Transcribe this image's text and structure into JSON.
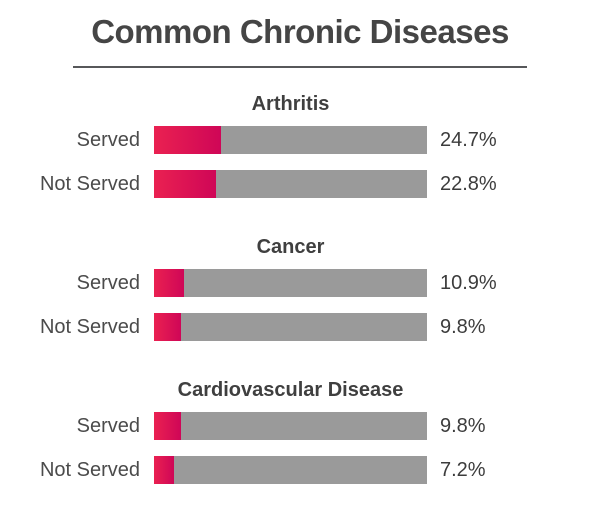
{
  "title": "Common Chronic Diseases",
  "chart_data": {
    "type": "bar",
    "orientation": "horizontal",
    "title": "Common Chronic Diseases",
    "value_unit": "percent",
    "xlim": [
      0,
      100
    ],
    "grid": false,
    "legend": "none",
    "categories": [
      "Served",
      "Not Served"
    ],
    "groups": [
      {
        "name": "Arthritis",
        "rows": [
          {
            "label": "Served",
            "value": 24.7,
            "display": "24.7%"
          },
          {
            "label": "Not Served",
            "value": 22.8,
            "display": "22.8%"
          }
        ]
      },
      {
        "name": "Cancer",
        "rows": [
          {
            "label": "Served",
            "value": 10.9,
            "display": "10.9%"
          },
          {
            "label": "Not Served",
            "value": 9.8,
            "display": "9.8%"
          }
        ]
      },
      {
        "name": "Cardiovascular Disease",
        "rows": [
          {
            "label": "Served",
            "value": 9.8,
            "display": "9.8%"
          },
          {
            "label": "Not Served",
            "value": 7.2,
            "display": "7.2%"
          }
        ]
      }
    ],
    "colors": {
      "bar_fill_gradient_start": "#ea2151",
      "bar_fill_gradient_end": "#cf0657",
      "bar_track": "#9a9a9a",
      "title_text": "#454545",
      "label_text": "#4b4b4b",
      "divider": "#57585a"
    }
  }
}
